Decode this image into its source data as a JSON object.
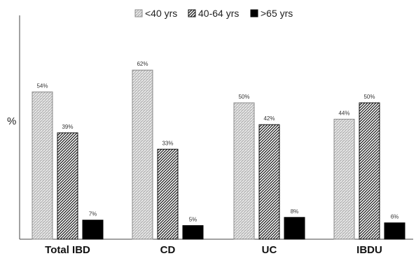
{
  "chart_data": {
    "type": "bar",
    "title": "",
    "xlabel": "",
    "ylabel": "%",
    "ylim": [
      0,
      70
    ],
    "grid": false,
    "legend": "top-center",
    "categories": [
      "Total IBD",
      "CD",
      "UC",
      "IBDU"
    ],
    "series": [
      {
        "name": "<40 yrs",
        "pattern": "dotted-hatch",
        "color": "#bfbfbf",
        "values": [
          54,
          62,
          50,
          44
        ],
        "labels": [
          "54%",
          "62%",
          "50%",
          "44%"
        ]
      },
      {
        "name": "40-64 yrs",
        "pattern": "diagonal-hatch",
        "color": "#333333",
        "values": [
          39,
          33,
          42,
          50
        ],
        "labels": [
          "39%",
          "33%",
          "42%",
          "50%"
        ]
      },
      {
        "name": ">65 yrs",
        "pattern": "solid",
        "color": "#000000",
        "values": [
          7,
          5,
          8,
          6
        ],
        "labels": [
          "7%",
          "5%",
          "8%",
          "6%"
        ]
      }
    ]
  }
}
